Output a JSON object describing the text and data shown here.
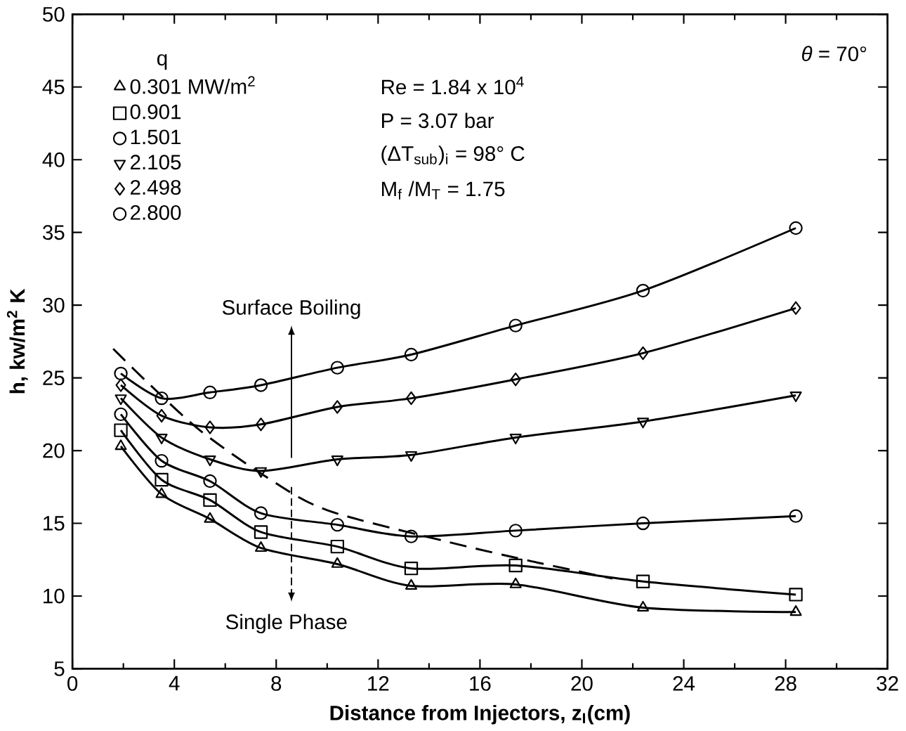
{
  "chart_data": {
    "type": "line",
    "xlabel": "Distance from Injectors,  z$_{I}$(cm)",
    "ylabel": "h, kw/m$^{2}$ K",
    "legend_title": "q",
    "legend": "top left",
    "grid": false,
    "line_style": "solid",
    "xlim": [
      0,
      32
    ],
    "ylim": [
      5,
      50
    ],
    "xticks": [
      0,
      4,
      8,
      12,
      16,
      20,
      24,
      28,
      32
    ],
    "yticks": [
      5,
      10,
      15,
      20,
      25,
      30,
      35,
      40,
      45,
      50
    ],
    "annotations": [
      "Re = 1.84 x 10$^{4}$",
      "P = 3.07 bar",
      "(ΔT$_{sub}$)$_{i}$ = 98° C",
      "M$_{f}$ /M$_{T}$ = 1.75",
      "*θ* = 70°",
      "Surface Boiling",
      "Single Phase"
    ],
    "series": [
      {
        "name": "0.301 MW/m$^{2}$",
        "color": "#000000",
        "marker": "triangle",
        "x": [
          1.9,
          3.5,
          5.4,
          7.4,
          10.4,
          13.3,
          17.4,
          22.4,
          28.4
        ],
        "values": [
          20.3,
          17.0,
          15.3,
          13.3,
          12.2,
          10.7,
          10.8,
          9.2,
          8.9
        ]
      },
      {
        "name": "0.901",
        "color": "#000000",
        "marker": "square",
        "x": [
          1.9,
          3.5,
          5.4,
          7.4,
          10.4,
          13.3,
          17.4,
          22.4,
          28.4
        ],
        "values": [
          21.4,
          18.0,
          16.6,
          14.4,
          13.4,
          11.9,
          12.1,
          11.0,
          10.1
        ]
      },
      {
        "name": "1.501",
        "color": "#000000",
        "marker": "circle",
        "x": [
          1.9,
          3.5,
          5.4,
          7.4,
          10.4,
          13.3,
          17.4,
          22.4,
          28.4
        ],
        "values": [
          22.5,
          19.3,
          17.9,
          15.7,
          14.9,
          14.1,
          14.5,
          15.0,
          15.5
        ]
      },
      {
        "name": "2.105",
        "color": "#000000",
        "marker": "triangle down",
        "x": [
          1.9,
          3.5,
          5.4,
          7.4,
          10.4,
          13.3,
          17.4,
          22.4,
          28.4
        ],
        "values": [
          23.6,
          20.9,
          19.4,
          18.6,
          19.4,
          19.7,
          20.9,
          22.0,
          23.8
        ]
      },
      {
        "name": "2.498",
        "color": "#000000",
        "marker": "diamond",
        "x": [
          1.9,
          3.5,
          5.4,
          7.4,
          10.4,
          13.3,
          17.4,
          22.4,
          28.4
        ],
        "values": [
          24.5,
          22.4,
          21.6,
          21.8,
          23.0,
          23.6,
          24.9,
          26.7,
          29.8
        ]
      },
      {
        "name": "2.800",
        "color": "#000000",
        "marker": "circle",
        "x": [
          1.9,
          3.5,
          5.4,
          7.4,
          10.4,
          13.3,
          17.4,
          22.4,
          28.4
        ],
        "values": [
          25.3,
          23.6,
          24.0,
          24.5,
          25.7,
          26.6,
          28.6,
          31.0,
          35.3
        ]
      },
      {
        "color": "#000000",
        "marker": "none",
        "line_style": "dashed",
        "x": [
          1.6,
          3.0,
          5.0,
          7.6,
          10.0,
          14.8,
          18.0,
          21.2
        ],
        "values": [
          27.0,
          24.6,
          21.4,
          18.2,
          15.9,
          13.7,
          12.4,
          11.2
        ]
      }
    ]
  }
}
